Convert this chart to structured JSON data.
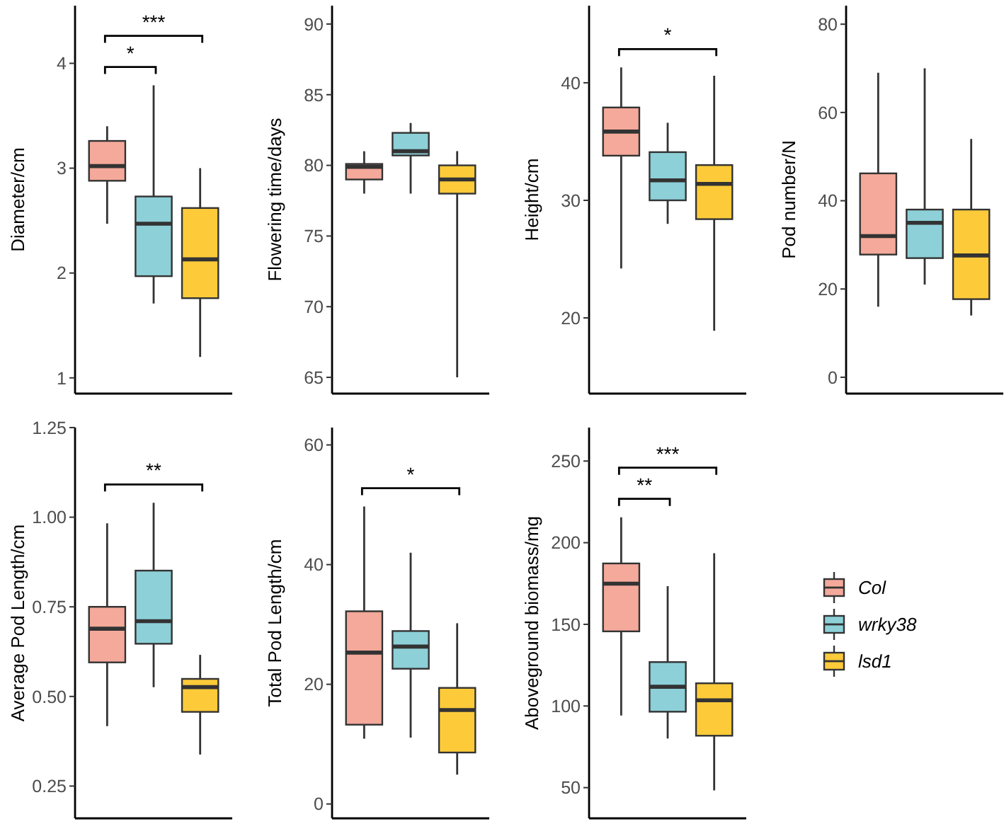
{
  "chart_data": [
    {
      "type": "box",
      "ylabel": "Diameter/cm",
      "categories": [
        null,
        null,
        null
      ],
      "ylim": [
        0.85,
        4.55
      ],
      "yticks": [
        1,
        2,
        3,
        4
      ],
      "tick_labels": "y",
      "annotations": [
        "*",
        "***"
      ],
      "series": [
        {
          "color": "#f4a99a",
          "boxes": [
            {
              "low": 2.47,
              "q1": 2.88,
              "median": 3.02,
              "q3": 3.26,
              "high": 3.4
            },
            null,
            null
          ]
        },
        {
          "color": "#8dd0d8",
          "boxes": [
            null,
            {
              "low": 1.71,
              "q1": 1.97,
              "median": 2.47,
              "q3": 2.73,
              "high": 3.79
            },
            null
          ]
        },
        {
          "color": "#fdcb3a",
          "boxes": [
            null,
            null,
            {
              "low": 1.2,
              "q1": 1.76,
              "median": 2.13,
              "q3": 2.62,
              "high": 3.0
            }
          ]
        }
      ]
    },
    {
      "type": "box",
      "ylabel": "Flowering time/days",
      "categories": [
        null,
        null,
        null
      ],
      "ylim": [
        63.85,
        91.3
      ],
      "yticks": [
        65,
        70,
        75,
        80,
        85,
        90
      ],
      "tick_labels": "y",
      "series": [
        {
          "color": "#f4a99a",
          "boxes": [
            {
              "low": 78,
              "q1": 79,
              "median": 79.9,
              "q3": 80.1,
              "high": 81
            },
            null,
            null
          ]
        },
        {
          "color": "#8dd0d8",
          "boxes": [
            null,
            {
              "low": 78,
              "q1": 80.7,
              "median": 81,
              "q3": 82.3,
              "high": 83
            },
            null
          ]
        },
        {
          "color": "#fdcb3a",
          "boxes": [
            null,
            null,
            {
              "low": 65,
              "q1": 78,
              "median": 79,
              "q3": 80,
              "high": 81
            }
          ]
        }
      ]
    },
    {
      "type": "box",
      "ylabel": "Height/cm",
      "categories": [
        null,
        null,
        null
      ],
      "ylim": [
        13.56,
        46.56
      ],
      "yticks": [
        20,
        30,
        40
      ],
      "tick_labels": "y",
      "annotations": [
        "*"
      ],
      "series": [
        {
          "color": "#f4a99a",
          "boxes": [
            {
              "low": 24.2,
              "q1": 33.8,
              "median": 35.85,
              "q3": 37.9,
              "high": 41.3
            },
            null,
            null
          ]
        },
        {
          "color": "#8dd0d8",
          "boxes": [
            null,
            {
              "low": 28,
              "q1": 30,
              "median": 31.7,
              "q3": 34.1,
              "high": 36.6
            },
            null
          ]
        },
        {
          "color": "#fdcb3a",
          "boxes": [
            null,
            null,
            {
              "low": 18.9,
              "q1": 28.4,
              "median": 31.4,
              "q3": 33,
              "high": 40.6
            }
          ]
        }
      ]
    },
    {
      "type": "box",
      "ylabel": "Pod number/N",
      "categories": [
        null,
        null,
        null
      ],
      "ylim": [
        -3.7,
        84.2
      ],
      "yticks": [
        0,
        20,
        40,
        60,
        80
      ],
      "tick_labels": "y",
      "series": [
        {
          "color": "#f4a99a",
          "boxes": [
            {
              "low": 16,
              "q1": 27.8,
              "median": 32,
              "q3": 46.2,
              "high": 69
            },
            null,
            null
          ]
        },
        {
          "color": "#8dd0d8",
          "boxes": [
            null,
            {
              "low": 21,
              "q1": 27,
              "median": 35,
              "q3": 38,
              "high": 70
            },
            null
          ]
        },
        {
          "color": "#fdcb3a",
          "boxes": [
            null,
            null,
            {
              "low": 14,
              "q1": 17.7,
              "median": 27.6,
              "q3": 38,
              "high": 54
            }
          ]
        }
      ]
    },
    {
      "type": "box",
      "ylabel": "Average Pod Length/cm",
      "categories": [
        null,
        null,
        null
      ],
      "ylim": [
        0.16,
        1.25
      ],
      "yticks": [
        {
          "value": 0.25,
          "label": "0.25"
        },
        {
          "value": 0.5,
          "label": "0.50"
        },
        {
          "value": 0.75,
          "label": "0.75"
        },
        {
          "value": 1,
          "label": "1.00"
        },
        {
          "value": 1.25,
          "label": "1.25"
        }
      ],
      "tick_labels": "y",
      "annotations": [
        "**"
      ],
      "series": [
        {
          "color": "#f4a99a",
          "boxes": [
            {
              "low": 0.417,
              "q1": 0.595,
              "median": 0.689,
              "q3": 0.75,
              "high": 0.983
            },
            null,
            null
          ]
        },
        {
          "color": "#8dd0d8",
          "boxes": [
            null,
            {
              "low": 0.526,
              "q1": 0.647,
              "median": 0.71,
              "q3": 0.851,
              "high": 1.04
            },
            null
          ]
        },
        {
          "color": "#fdcb3a",
          "boxes": [
            null,
            null,
            {
              "low": 0.338,
              "q1": 0.457,
              "median": 0.526,
              "q3": 0.549,
              "high": 0.616
            }
          ]
        }
      ]
    },
    {
      "type": "box",
      "ylabel": "Total Pod Length/cm",
      "categories": [
        null,
        null,
        null
      ],
      "ylim": [
        -2.4,
        62.9
      ],
      "yticks": [
        0,
        20,
        40,
        60
      ],
      "tick_labels": "y",
      "annotations": [
        "*"
      ],
      "series": [
        {
          "color": "#f4a99a",
          "boxes": [
            {
              "low": 10.9,
              "q1": 13.25,
              "median": 25.3,
              "q3": 32.2,
              "high": 49.7
            },
            null,
            null
          ]
        },
        {
          "color": "#8dd0d8",
          "boxes": [
            null,
            {
              "low": 11.1,
              "q1": 22.6,
              "median": 26.3,
              "q3": 28.9,
              "high": 42
            },
            null
          ]
        },
        {
          "color": "#fdcb3a",
          "boxes": [
            null,
            null,
            {
              "low": 4.9,
              "q1": 8.6,
              "median": 15.7,
              "q3": 19.4,
              "high": 30.2
            }
          ]
        }
      ]
    },
    {
      "type": "box",
      "ylabel": "Aboveground biomass/mg",
      "categories": [
        null,
        null,
        null
      ],
      "ylim": [
        31.2,
        270.5
      ],
      "yticks": [
        50,
        100,
        150,
        200,
        250
      ],
      "tick_labels": "y",
      "legend": "right",
      "annotations": [
        "**",
        "***"
      ],
      "series": [
        {
          "name": "Col",
          "color": "#f4a99a",
          "boxes": [
            {
              "low": 94.2,
              "q1": 145.7,
              "median": 174.9,
              "q3": 187.3,
              "high": 215.6
            },
            null,
            null
          ]
        },
        {
          "name": "wrky38",
          "color": "#8dd0d8",
          "boxes": [
            null,
            {
              "low": 80.1,
              "q1": 96.5,
              "median": 111.8,
              "q3": 126.9,
              "high": 173.4
            },
            null
          ]
        },
        {
          "name": "lsd1",
          "color": "#fdcb3a",
          "boxes": [
            null,
            null,
            {
              "low": 48.3,
              "q1": 81.8,
              "median": 103.5,
              "q3": 113.9,
              "high": 193.6
            }
          ]
        }
      ]
    }
  ]
}
